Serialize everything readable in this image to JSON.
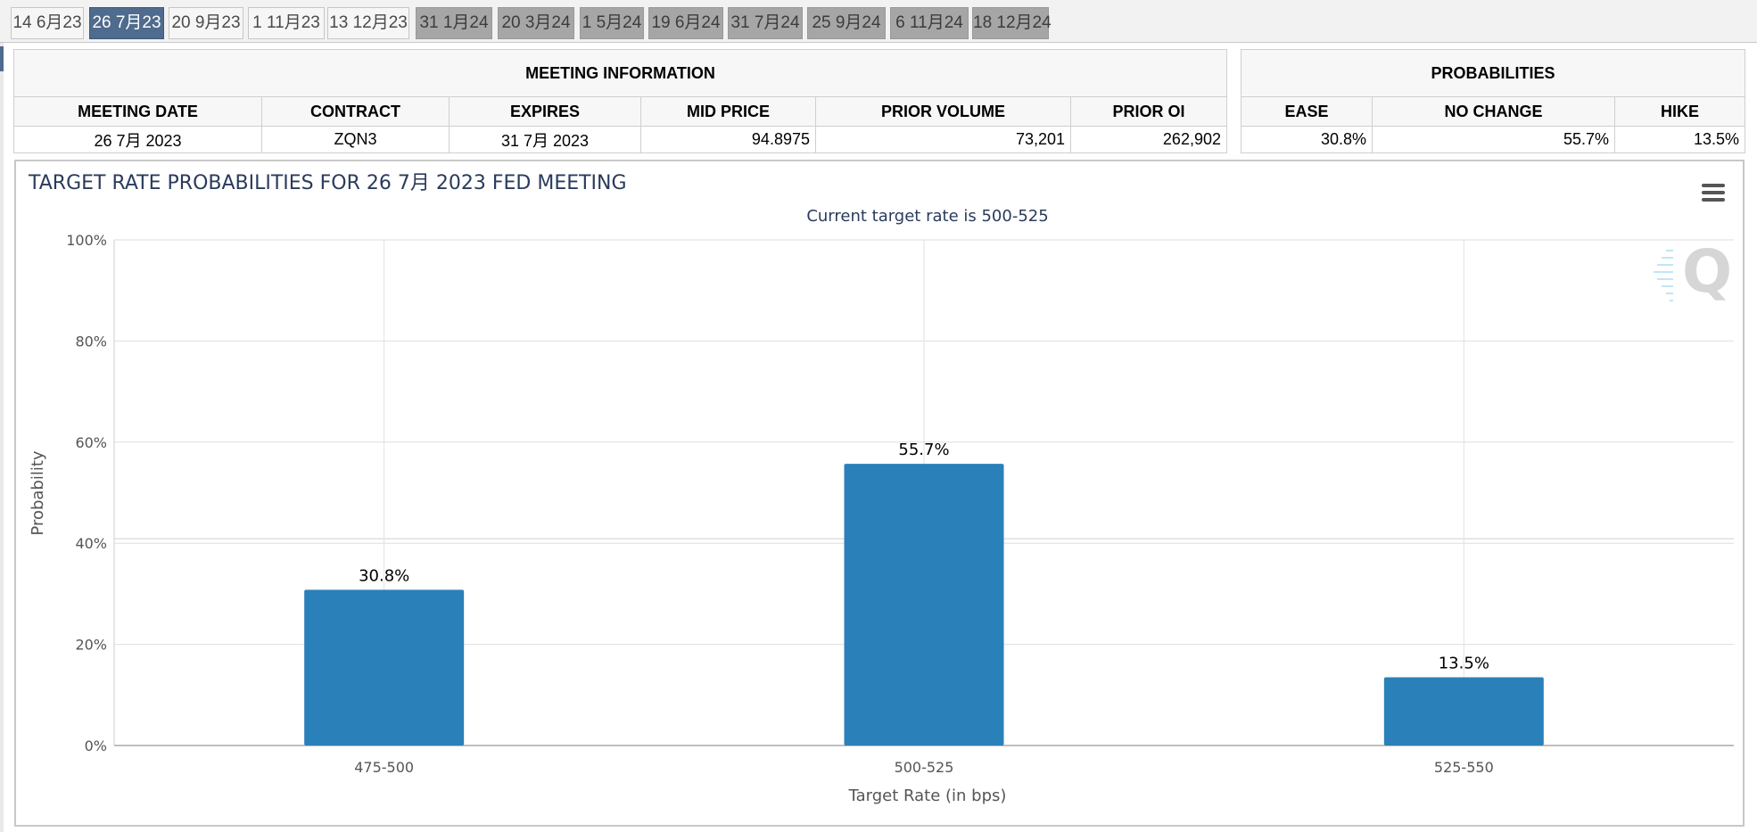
{
  "tabs": [
    {
      "label": "14 6月23",
      "style": "light"
    },
    {
      "label": "26 7月23",
      "style": "active"
    },
    {
      "label": "20 9月23",
      "style": "light"
    },
    {
      "label": "1 11月23",
      "style": "light"
    },
    {
      "label": "13 12月23",
      "style": "light"
    },
    {
      "label": "31 1月24",
      "style": "dark"
    },
    {
      "label": "20 3月24",
      "style": "dark"
    },
    {
      "label": "1 5月24",
      "style": "dark"
    },
    {
      "label": "19 6月24",
      "style": "dark"
    },
    {
      "label": "31 7月24",
      "style": "dark"
    },
    {
      "label": "25 9月24",
      "style": "dark"
    },
    {
      "label": "6 11月24",
      "style": "dark"
    },
    {
      "label": "18 12月24",
      "style": "dark"
    }
  ],
  "meeting_info": {
    "title": "MEETING INFORMATION",
    "headers": [
      "MEETING DATE",
      "CONTRACT",
      "EXPIRES",
      "MID PRICE",
      "PRIOR VOLUME",
      "PRIOR OI"
    ],
    "values": [
      "26 7月 2023",
      "ZQN3",
      "31 7月 2023",
      "94.8975",
      "73,201",
      "262,902"
    ]
  },
  "probabilities": {
    "title": "PROBABILITIES",
    "headers": [
      "EASE",
      "NO CHANGE",
      "HIKE"
    ],
    "values": [
      "30.8%",
      "55.7%",
      "13.5%"
    ]
  },
  "chart_data": {
    "type": "bar",
    "title": "TARGET RATE PROBABILITIES FOR 26 7月 2023 FED MEETING",
    "subtitle": "Current target rate is 500-525",
    "categories": [
      "475-500",
      "500-525",
      "525-550"
    ],
    "values": [
      30.8,
      55.7,
      13.5
    ],
    "data_labels": [
      "30.8%",
      "55.7%",
      "13.5%"
    ],
    "xlabel": "Target Rate (in bps)",
    "ylabel": "Probability",
    "ylim": [
      0,
      100
    ],
    "yticks": [
      0,
      20,
      40,
      60,
      80,
      100
    ],
    "ytick_labels": [
      "0%",
      "20%",
      "40%",
      "60%",
      "80%",
      "100%"
    ],
    "grid": true,
    "bar_color": "#2a80b9"
  },
  "menu_icon": "hamburger-menu-icon",
  "watermark_icon": "q-logo-icon"
}
